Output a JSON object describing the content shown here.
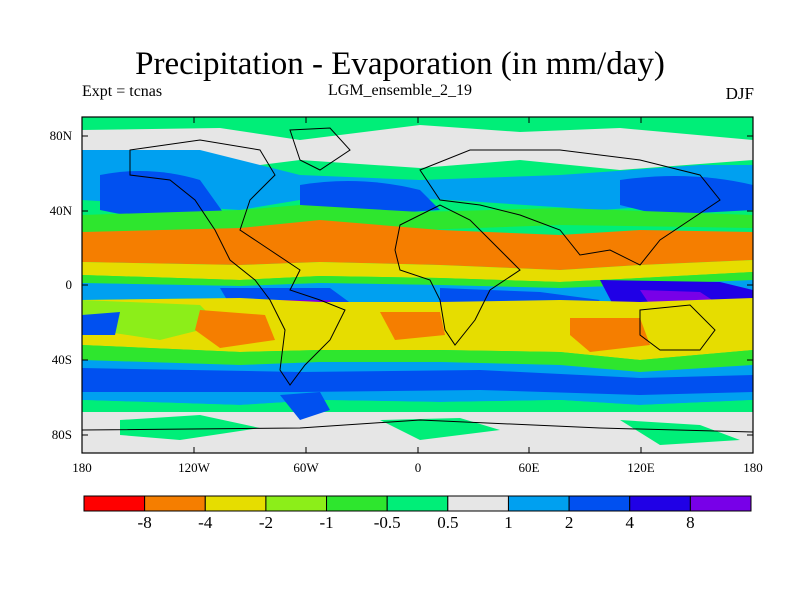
{
  "title": "Precipitation - Evaporation (in mm/day)",
  "subtitle_left": "Expt = tcnas",
  "subtitle_center": "LGM_ensemble_2_19",
  "subtitle_right": "DJF",
  "lat_labels": [
    "80N",
    "40N",
    "0",
    "40S",
    "80S"
  ],
  "lon_labels": [
    "180",
    "120W",
    "60W",
    "0",
    "60E",
    "120E",
    "180"
  ],
  "colorbar": {
    "colors": [
      "#ff0000",
      "#f57e00",
      "#e6dd00",
      "#8cee19",
      "#2ee62e",
      "#00ee78",
      "#e6e6e6",
      "#00a0f0",
      "#0050f0",
      "#2000e6",
      "#7800e8"
    ],
    "labels": [
      "-8",
      "-4",
      "-2",
      "-1",
      "-0.5",
      "0.5",
      "1",
      "2",
      "4",
      "8"
    ]
  }
}
